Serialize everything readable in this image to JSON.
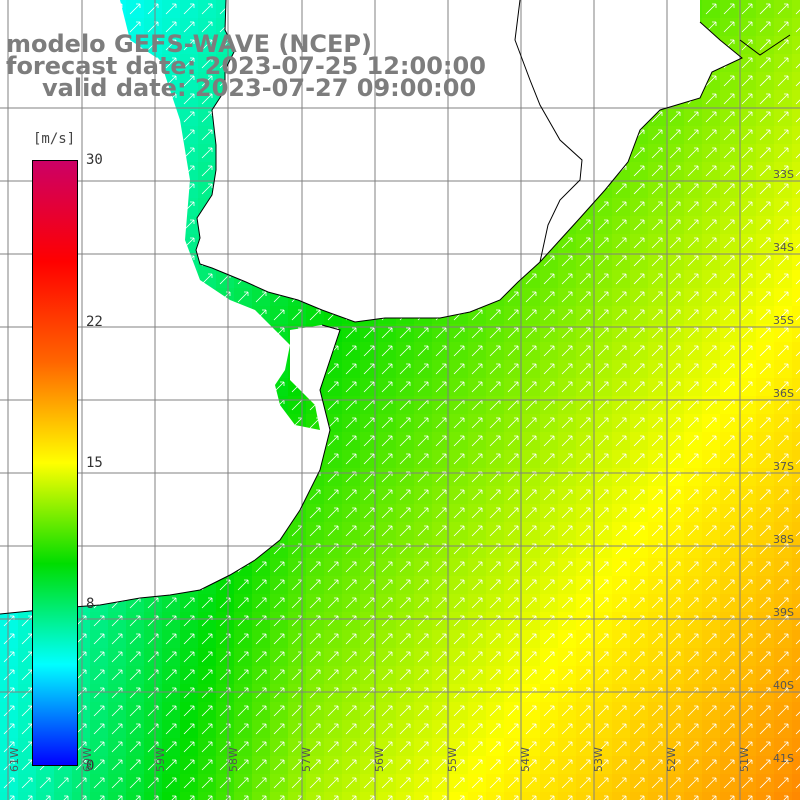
{
  "title": {
    "line1": "modelo GEFS-WAVE (NCEP)",
    "line2": "forecast date: 2023-07-25 12:00:00",
    "line3": "valid date: 2023-07-27 09:00:00"
  },
  "colorbar": {
    "units": "[m/s]",
    "ticks": [
      "30",
      "22",
      "15",
      "8",
      "0"
    ],
    "tick_values": [
      30,
      22,
      15,
      8,
      0
    ],
    "range": [
      0,
      30
    ],
    "colors": [
      "#0000ff",
      "#00ffff",
      "#00dd00",
      "#ffff00",
      "#ff6600",
      "#ff0000",
      "#cc0066"
    ]
  },
  "map": {
    "lat_labels": [
      "33S",
      "34S",
      "35S",
      "36S",
      "37S",
      "38S",
      "39S",
      "40S",
      "41S"
    ],
    "lon_labels": [
      "61W",
      "60W",
      "59W",
      "58W",
      "57W",
      "56W",
      "55W",
      "54W",
      "53W",
      "52W",
      "51W"
    ],
    "land_color": "#ffffff",
    "grid_color": "#808080",
    "arrow_color": "#ffffff"
  }
}
